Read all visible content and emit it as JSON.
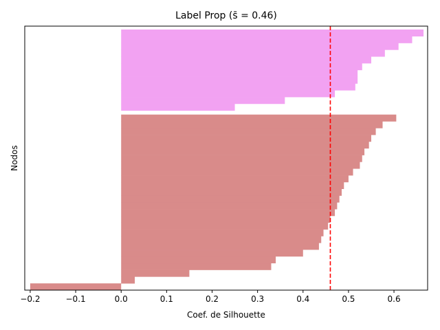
{
  "chart_data": {
    "type": "silhouette",
    "title": "Label Prop (s̄ = 0.46)",
    "xlabel": "Coef. de Silhouette",
    "ylabel": "Nodos",
    "xlim": [
      -0.212,
      0.674
    ],
    "xticks": [
      {
        "value": -0.2,
        "label": "−0.2"
      },
      {
        "value": -0.1,
        "label": "−0.1"
      },
      {
        "value": 0,
        "label": "0.0"
      },
      0.1,
      0.2,
      0.3,
      0.4,
      0.5,
      0.6
    ],
    "mean": 0.46,
    "mean_color": "#ff0000",
    "clusters": [
      {
        "color": "#d98b8a",
        "values": [
          -0.2,
          0.03,
          0.15,
          0.33,
          0.34,
          0.4,
          0.435,
          0.44,
          0.445,
          0.455,
          0.46,
          0.47,
          0.475,
          0.48,
          0.485,
          0.49,
          0.5,
          0.51,
          0.525,
          0.53,
          0.535,
          0.545,
          0.55,
          0.56,
          0.575,
          0.605
        ]
      },
      {
        "color": "#f2a2f2",
        "values": [
          0.25,
          0.36,
          0.47,
          0.515,
          0.52,
          0.52,
          0.53,
          0.55,
          0.58,
          0.61,
          0.64,
          0.665
        ]
      }
    ]
  }
}
